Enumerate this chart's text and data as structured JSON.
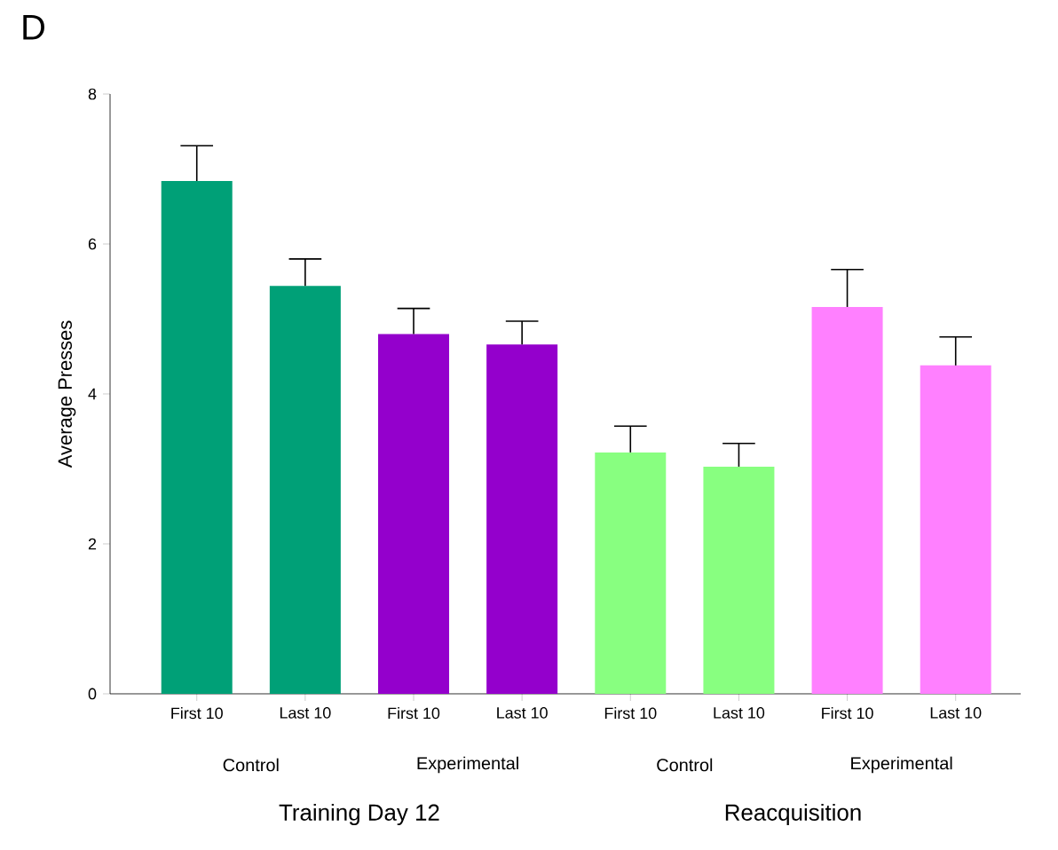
{
  "chart_data": {
    "type": "bar",
    "title": "D",
    "ylabel": "Average Presses",
    "categories": [
      "First 10",
      "Last 10",
      "First 10",
      "Last 10",
      "First 10",
      "Last 10",
      "First 10",
      "Last 10"
    ],
    "values": [
      6.84,
      5.44,
      4.8,
      4.66,
      3.22,
      3.03,
      5.16,
      4.38
    ],
    "errors": [
      [
        6.84,
        7.31
      ],
      [
        5.44,
        5.8
      ],
      [
        4.8,
        5.14
      ],
      [
        4.66,
        4.97
      ],
      [
        3.22,
        3.57
      ],
      [
        3.03,
        3.34
      ],
      [
        5.16,
        5.66
      ],
      [
        4.38,
        4.76
      ]
    ],
    "colors": [
      "#00a077",
      "#00a077",
      "#9400cc",
      "#9400cc",
      "#88ff80",
      "#88ff80",
      "#ff80ff",
      "#ff80ff"
    ],
    "ylim": [
      0,
      8
    ],
    "yticks": [
      0,
      2,
      4,
      6,
      8
    ],
    "grid": false,
    "annotations": [
      "Control",
      "Experimental",
      "Control",
      "Experimental",
      "Training Day 12",
      "Reacquisition"
    ]
  }
}
